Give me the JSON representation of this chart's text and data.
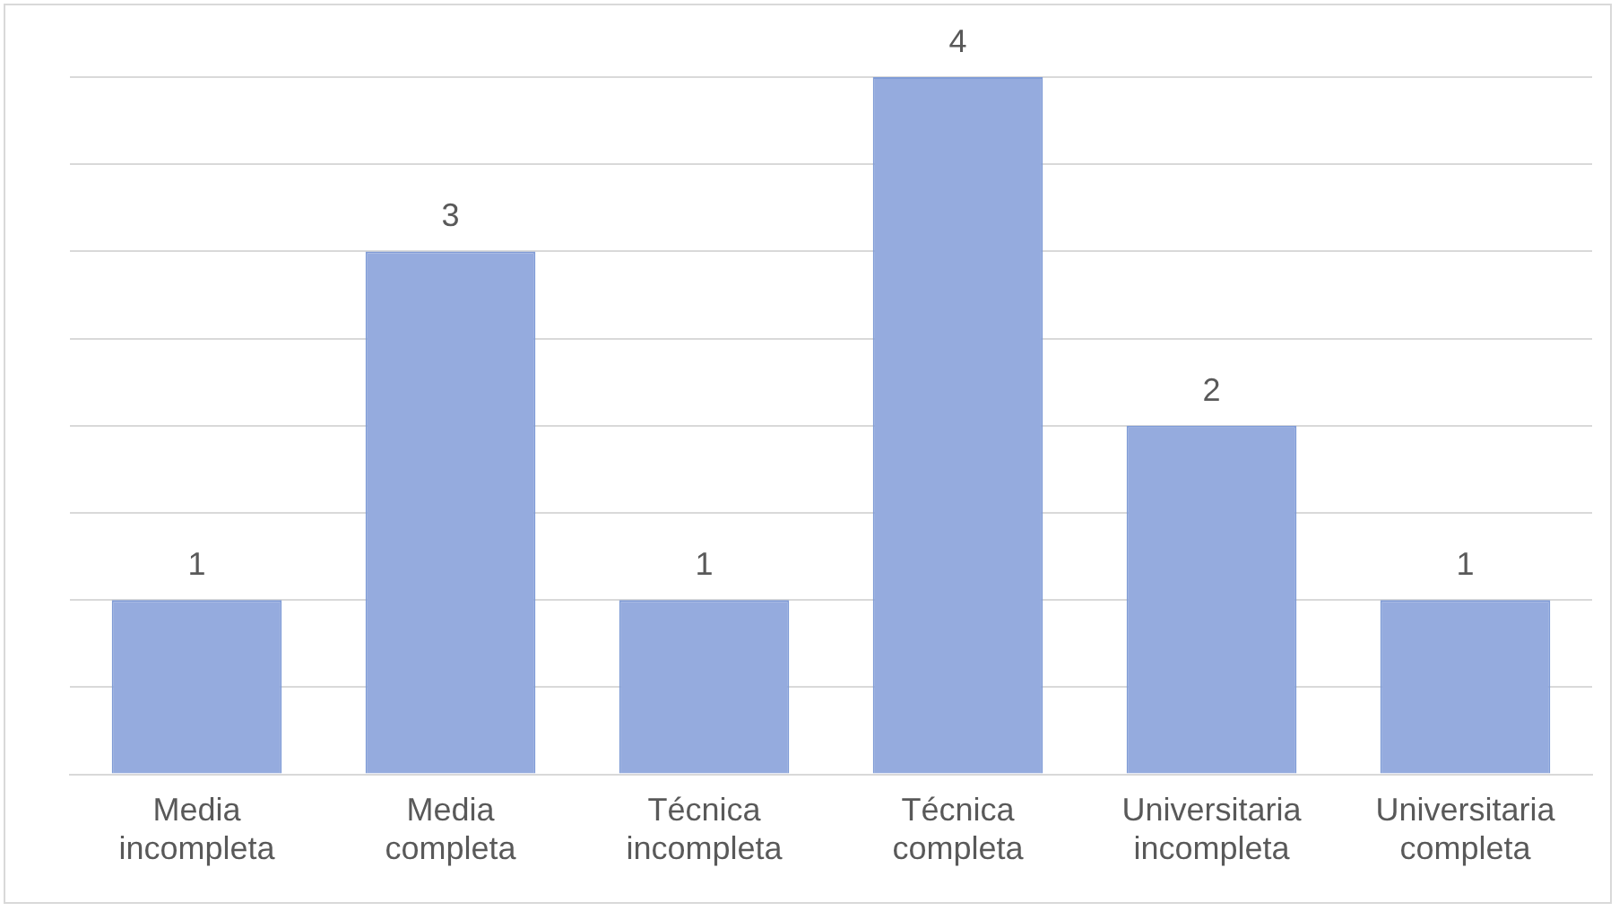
{
  "chart_data": {
    "type": "bar",
    "categories": [
      "Media incompleta",
      "Media completa",
      "Técnica incompleta",
      "Técnica completa",
      "Universitaria incompleta",
      "Universitaria completa"
    ],
    "values": [
      1,
      3,
      1,
      4,
      2,
      1
    ],
    "color": "#95abde",
    "grid": "y",
    "tick_labels": "x",
    "data_labels": true
  }
}
